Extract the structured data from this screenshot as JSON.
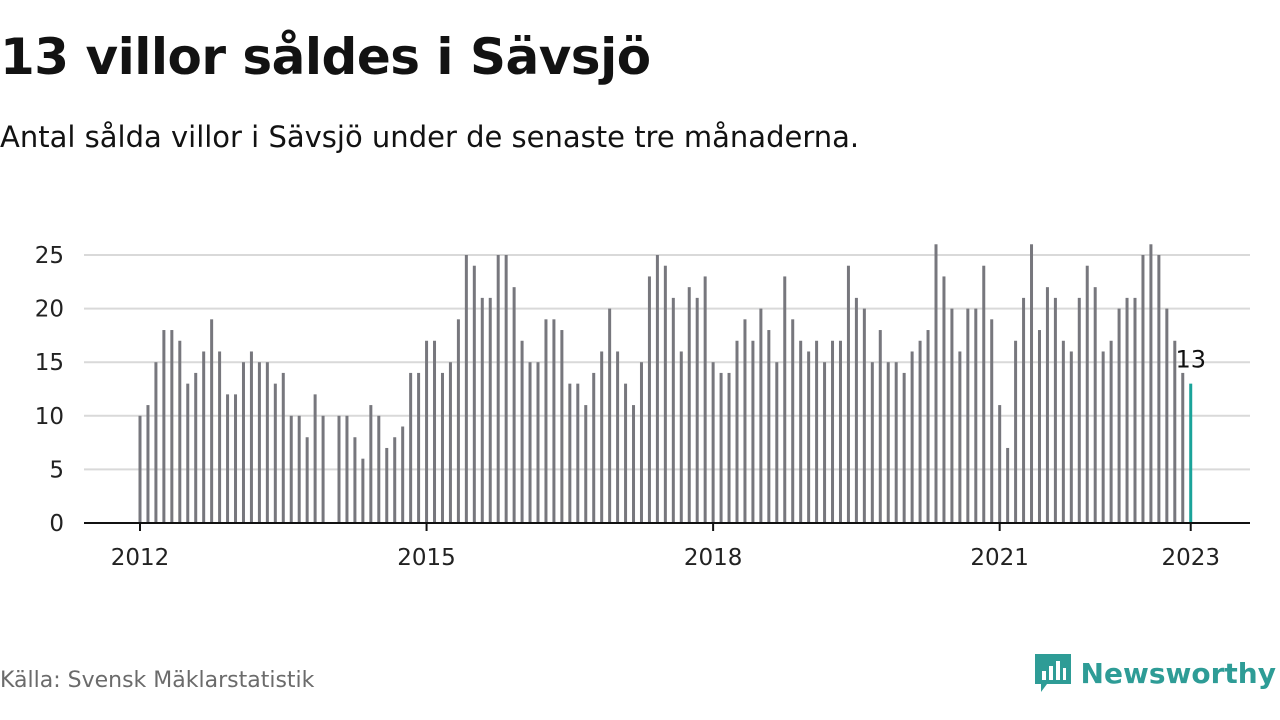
{
  "title": "13 villor såldes i Sävsjö",
  "subtitle": "Antal sålda villor i Sävsjö under de senaste tre månaderna.",
  "source": "Källa: Svensk Mäklarstatistik",
  "brand": {
    "name": "Newsworthy",
    "icon": "bar-chart-speech-icon",
    "color": "#2e9c96"
  },
  "colors": {
    "bar": "#77777d",
    "highlight": "#1aa39a",
    "grid": "#d9d9d9",
    "axis": "#111111"
  },
  "chart_data": {
    "type": "bar",
    "title": "13 villor såldes i Sävsjö",
    "ylim": [
      0,
      26
    ],
    "y_ticks": [
      0,
      5,
      10,
      15,
      20,
      25
    ],
    "x_ticks": [
      "2012",
      "2015",
      "2018",
      "2021",
      "2023"
    ],
    "grid": true,
    "start_month": "2012-01",
    "end_month": "2023-01",
    "values": [
      10,
      11,
      15,
      18,
      18,
      17,
      13,
      14,
      16,
      19,
      16,
      12,
      12,
      15,
      16,
      15,
      15,
      13,
      14,
      10,
      10,
      8,
      12,
      10,
      null,
      10,
      10,
      8,
      6,
      11,
      10,
      7,
      8,
      9,
      14,
      14,
      17,
      17,
      14,
      15,
      19,
      25,
      24,
      21,
      21,
      25,
      25,
      22,
      17,
      15,
      15,
      19,
      19,
      18,
      13,
      13,
      11,
      14,
      16,
      20,
      16,
      13,
      11,
      15,
      23,
      25,
      24,
      21,
      16,
      22,
      21,
      23,
      15,
      14,
      14,
      17,
      19,
      17,
      20,
      18,
      15,
      23,
      19,
      17,
      16,
      17,
      15,
      17,
      17,
      24,
      21,
      20,
      15,
      18,
      15,
      15,
      14,
      16,
      17,
      18,
      26,
      23,
      20,
      16,
      20,
      20,
      24,
      19,
      11,
      7,
      17,
      21,
      26,
      18,
      22,
      21,
      17,
      16,
      21,
      24,
      22,
      16,
      17,
      20,
      21,
      21,
      25,
      26,
      25,
      20,
      17,
      14,
      13
    ],
    "highlight": {
      "label": "13",
      "value": 13,
      "date": "2023-01"
    }
  }
}
